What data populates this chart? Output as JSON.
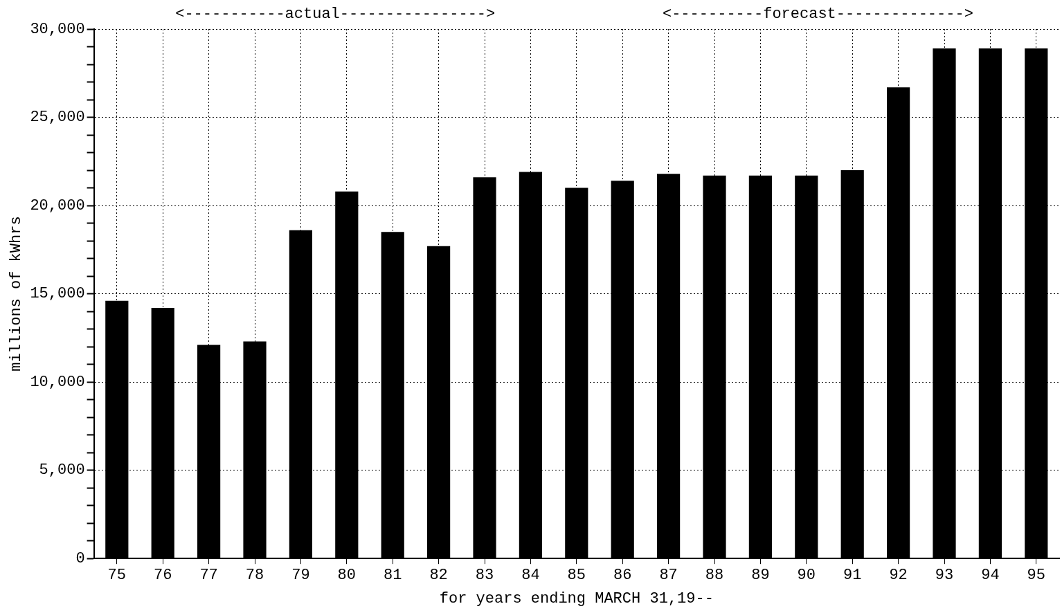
{
  "chart_data": {
    "type": "bar",
    "xlabel": "for years ending MARCH 31,19--",
    "ylabel": "millions of kWhrs",
    "annotations": [
      "<-----------actual---------------->",
      "<----------forecast-------------->"
    ],
    "categories": [
      "75",
      "76",
      "77",
      "78",
      "79",
      "80",
      "81",
      "82",
      "83",
      "84",
      "85",
      "86",
      "87",
      "88",
      "89",
      "90",
      "91",
      "92",
      "93",
      "94",
      "95"
    ],
    "values": [
      14600,
      14200,
      12100,
      12300,
      18600,
      20800,
      18500,
      17700,
      21600,
      21900,
      21000,
      21400,
      21800,
      21700,
      21700,
      21700,
      22000,
      26700,
      28900,
      28900,
      28900
    ],
    "color": "#000000",
    "ylim": [
      0,
      30000
    ],
    "yticks": [
      {
        "value": 0,
        "label": "0"
      },
      {
        "value": 1000,
        "label": null
      },
      {
        "value": 2000,
        "label": null
      },
      {
        "value": 3000,
        "label": null
      },
      {
        "value": 4000,
        "label": null
      },
      {
        "value": 5000,
        "label": "5,000"
      },
      {
        "value": 6000,
        "label": null
      },
      {
        "value": 7000,
        "label": null
      },
      {
        "value": 8000,
        "label": null
      },
      {
        "value": 9000,
        "label": null
      },
      {
        "value": 10000,
        "label": "10,000"
      },
      {
        "value": 11000,
        "label": null
      },
      {
        "value": 12000,
        "label": null
      },
      {
        "value": 13000,
        "label": null
      },
      {
        "value": 14000,
        "label": null
      },
      {
        "value": 15000,
        "label": "15,000"
      },
      {
        "value": 16000,
        "label": null
      },
      {
        "value": 17000,
        "label": null
      },
      {
        "value": 18000,
        "label": null
      },
      {
        "value": 19000,
        "label": null
      },
      {
        "value": 20000,
        "label": "20,000"
      },
      {
        "value": 21000,
        "label": null
      },
      {
        "value": 22000,
        "label": null
      },
      {
        "value": 23000,
        "label": null
      },
      {
        "value": 24000,
        "label": null
      },
      {
        "value": 25000,
        "label": "25,000"
      },
      {
        "value": 26000,
        "label": null
      },
      {
        "value": 27000,
        "label": null
      },
      {
        "value": 28000,
        "label": null
      },
      {
        "value": 29000,
        "label": null
      },
      {
        "value": 30000,
        "label": "30,000"
      }
    ],
    "grid": true,
    "legend": false
  }
}
